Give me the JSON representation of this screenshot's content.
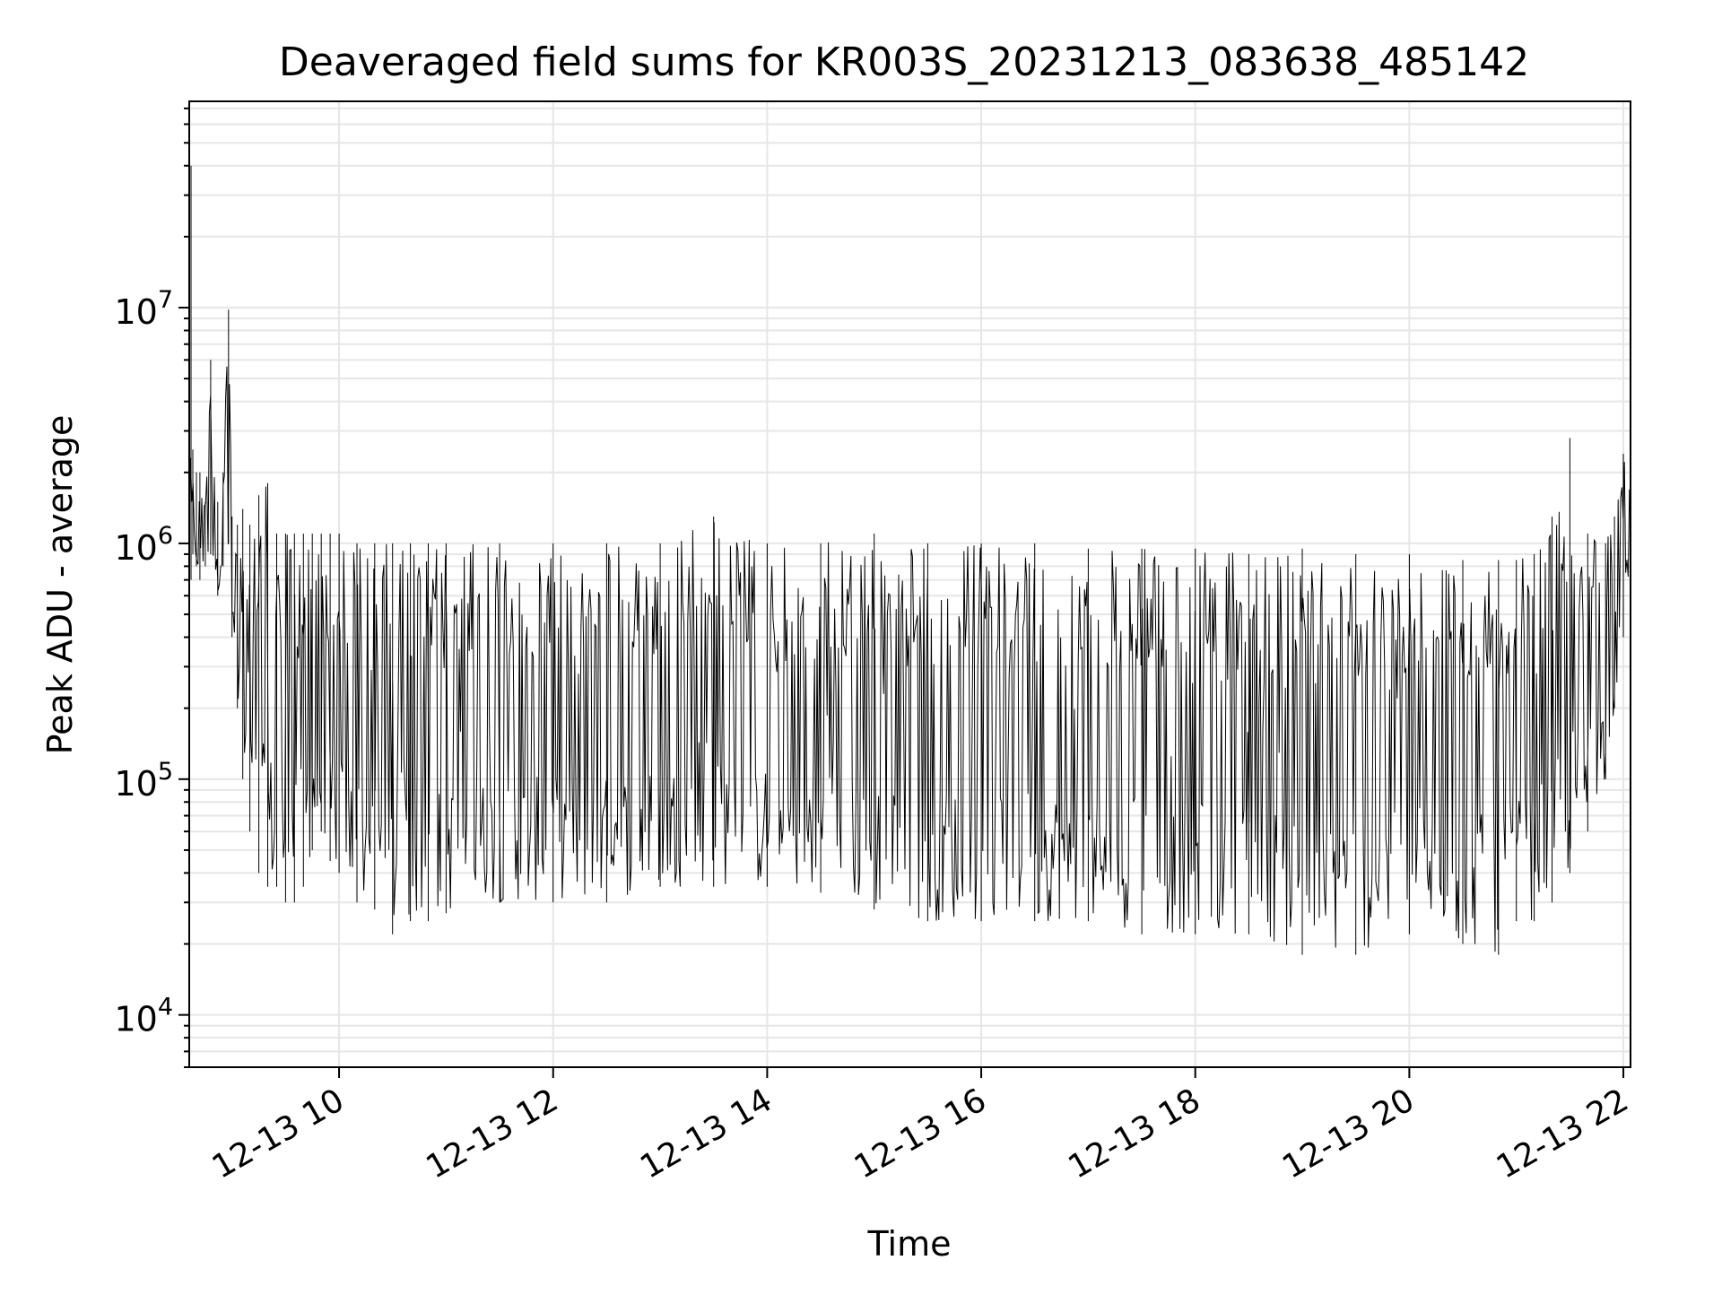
{
  "chart_data": {
    "type": "line",
    "title": "Deaveraged field sums for KR003S_20231213_083638_485142",
    "xlabel": "Time",
    "ylabel": "Peak ADU - average",
    "x_axis": {
      "kind": "datetime",
      "min": "2023-12-13 08:36",
      "max": "2023-12-13 22:04",
      "ticks": [
        "2023-12-13 10:00",
        "2023-12-13 12:00",
        "2023-12-13 14:00",
        "2023-12-13 16:00",
        "2023-12-13 18:00",
        "2023-12-13 20:00",
        "2023-12-13 22:00"
      ],
      "tick_labels": [
        "12-13 10",
        "12-13 12",
        "12-13 14",
        "12-13 16",
        "12-13 18",
        "12-13 20",
        "12-13 22"
      ]
    },
    "y_axis": {
      "scale": "log",
      "ylim": [
        6000,
        75000000
      ],
      "ticks": [
        10000,
        100000,
        1000000,
        10000000
      ],
      "tick_labels": [
        {
          "base": "10",
          "exp": "4"
        },
        {
          "base": "10",
          "exp": "5"
        },
        {
          "base": "10",
          "exp": "6"
        },
        {
          "base": "10",
          "exp": "7"
        }
      ]
    },
    "grid": true,
    "line_color": "#000000",
    "grid_color": "#e6e6e6",
    "series": [
      {
        "x": [
          "2023-12-13 08:36",
          "2023-12-13 08:37",
          "2023-12-13 08:38",
          "2023-12-13 08:40",
          "2023-12-13 08:42",
          "2023-12-13 08:45",
          "2023-12-13 08:48",
          "2023-12-13 08:52",
          "2023-12-13 08:55",
          "2023-12-13 08:58",
          "2023-12-13 09:00",
          "2023-12-13 09:03",
          "2023-12-13 09:06",
          "2023-12-13 09:10",
          "2023-12-13 09:15",
          "2023-12-13 09:20",
          "2023-12-13 09:25",
          "2023-12-13 09:30",
          "2023-12-13 09:35",
          "2023-12-13 09:40",
          "2023-12-13 09:45",
          "2023-12-13 09:50",
          "2023-12-13 09:55",
          "2023-12-13 10:00",
          "2023-12-13 10:10",
          "2023-12-13 10:20",
          "2023-12-13 10:30",
          "2023-12-13 10:40",
          "2023-12-13 10:50",
          "2023-12-13 11:00",
          "2023-12-13 11:30",
          "2023-12-13 12:00",
          "2023-12-13 12:30",
          "2023-12-13 13:00",
          "2023-12-13 13:30",
          "2023-12-13 14:00",
          "2023-12-13 14:30",
          "2023-12-13 15:00",
          "2023-12-13 15:30",
          "2023-12-13 16:00",
          "2023-12-13 16:30",
          "2023-12-13 17:00",
          "2023-12-13 17:30",
          "2023-12-13 18:00",
          "2023-12-13 18:30",
          "2023-12-13 19:00",
          "2023-12-13 19:30",
          "2023-12-13 20:00",
          "2023-12-13 20:30",
          "2023-12-13 20:50",
          "2023-12-13 21:00",
          "2023-12-13 21:10",
          "2023-12-13 21:20",
          "2023-12-13 21:30",
          "2023-12-13 21:40",
          "2023-12-13 21:50",
          "2023-12-13 21:55",
          "2023-12-13 22:00",
          "2023-12-13 22:04"
        ],
        "low": [
          1000000,
          700000,
          900000,
          800000,
          700000,
          800000,
          900000,
          600000,
          800000,
          1000000,
          400000,
          200000,
          100000,
          60000,
          40000,
          35000,
          35000,
          30000,
          30000,
          35000,
          50000,
          60000,
          45000,
          40000,
          30000,
          28000,
          22000,
          25000,
          25000,
          27000,
          30000,
          30000,
          30000,
          35000,
          35000,
          35000,
          33000,
          28000,
          25000,
          25000,
          25000,
          25000,
          22000,
          22000,
          22000,
          18000,
          18000,
          22000,
          20000,
          18000,
          25000,
          25000,
          30000,
          40000,
          60000,
          100000,
          200000,
          400000,
          900000
        ],
        "high": [
          2500000,
          40000000,
          2500000,
          2000000,
          2000000,
          1500000,
          6000000,
          1500000,
          2000000,
          9800000,
          1300000,
          1200000,
          1400000,
          1200000,
          1600000,
          1800000,
          1100000,
          1100000,
          1100000,
          1100000,
          1100000,
          1100000,
          1100000,
          1100000,
          1000000,
          1000000,
          1000000,
          1000000,
          1000000,
          1000000,
          1000000,
          1000000,
          1000000,
          1000000,
          1300000,
          1000000,
          1000000,
          1100000,
          1000000,
          1000000,
          1000000,
          950000,
          950000,
          950000,
          900000,
          950000,
          900000,
          900000,
          850000,
          850000,
          850000,
          900000,
          1300000,
          2800000,
          1100000,
          1000000,
          1300000,
          2400000,
          1800000
        ]
      }
    ]
  }
}
